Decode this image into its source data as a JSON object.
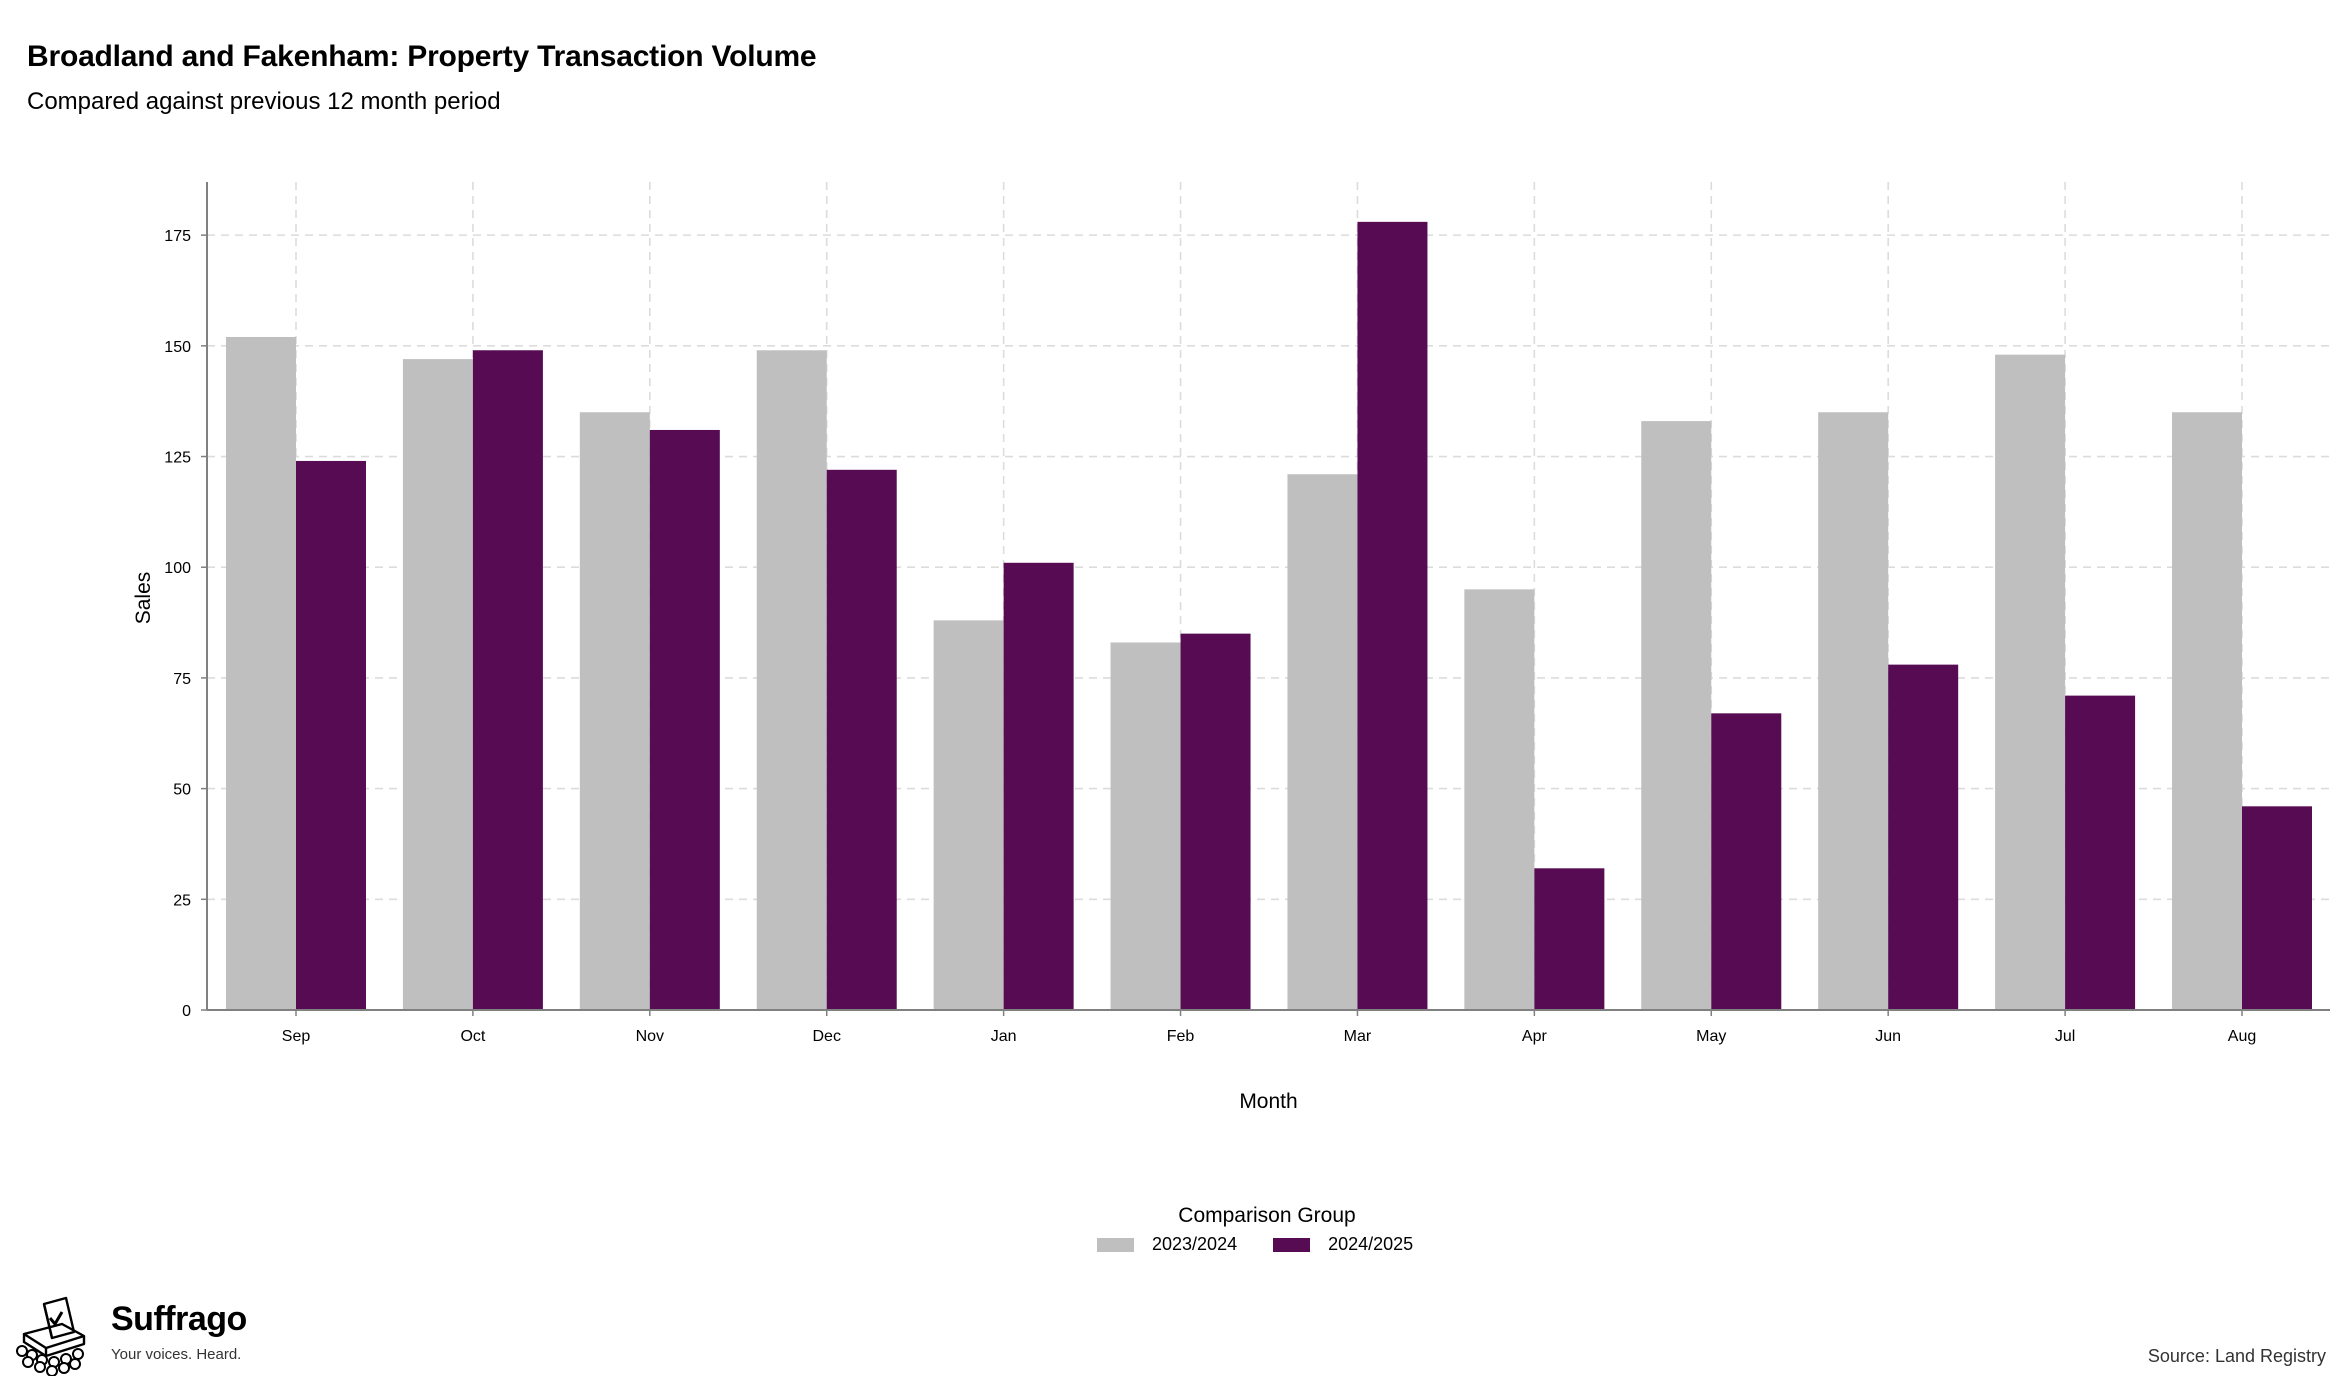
{
  "colors": {
    "series_2023_2024": "#bfbfbf",
    "series_2024_2025": "#560b52",
    "grid": "#dcdcdc",
    "axis": "#808080"
  },
  "chart_data": {
    "type": "bar",
    "title": "Broadland and Fakenham: Property Transaction Volume",
    "subtitle": "Compared against previous 12 month period",
    "xlabel": "Month",
    "ylabel": "Sales",
    "categories": [
      "Sep",
      "Oct",
      "Nov",
      "Dec",
      "Jan",
      "Feb",
      "Mar",
      "Apr",
      "May",
      "Jun",
      "Jul",
      "Aug"
    ],
    "series": [
      {
        "name": "2023/2024",
        "values": [
          152,
          147,
          135,
          149,
          88,
          83,
          121,
          95,
          133,
          135,
          148,
          135
        ]
      },
      {
        "name": "2024/2025",
        "values": [
          124,
          149,
          131,
          122,
          101,
          85,
          178,
          32,
          67,
          78,
          71,
          46
        ]
      }
    ],
    "ylim": [
      0,
      187
    ],
    "yticks": [
      0,
      25,
      50,
      75,
      100,
      125,
      150,
      175
    ],
    "grid": true,
    "legend": {
      "title": "Comparison Group",
      "position": "bottom",
      "items": [
        "2023/2024",
        "2024/2025"
      ]
    }
  },
  "branding": {
    "name": "Suffrago",
    "tagline": "Your voices. Heard."
  },
  "source": "Source: Land Registry"
}
